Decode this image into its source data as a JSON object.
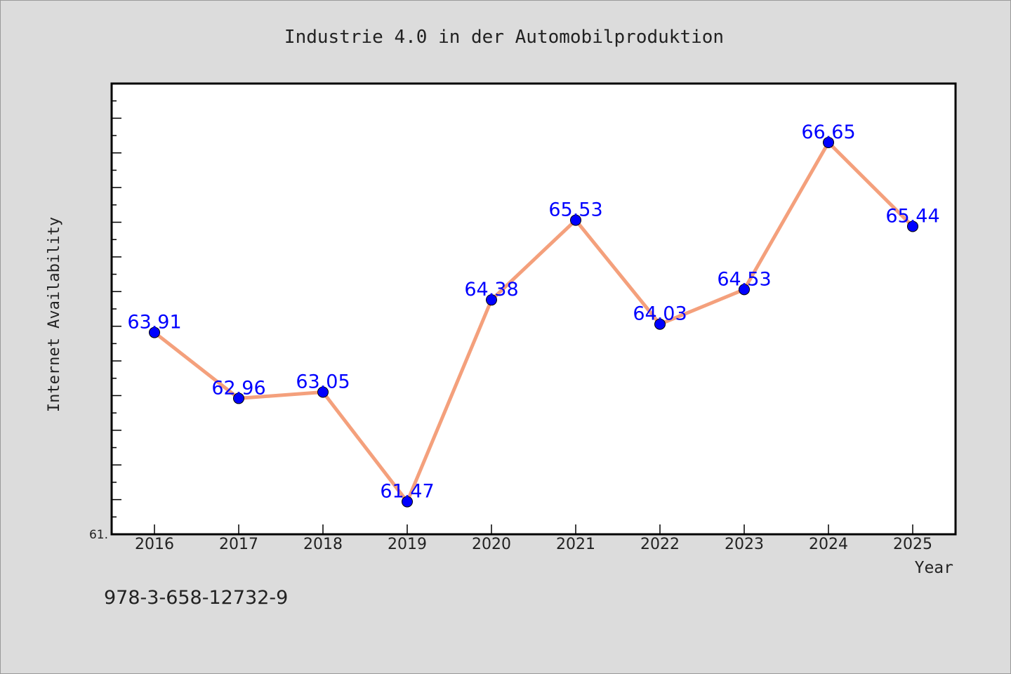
{
  "chart_data": {
    "type": "line",
    "title": "Industrie 4.0 in der Automobilproduktion",
    "xlabel": "Year",
    "ylabel": "Internet Availability",
    "categories": [
      "2016",
      "2017",
      "2018",
      "2019",
      "2020",
      "2021",
      "2022",
      "2023",
      "2024",
      "2025"
    ],
    "series": [
      {
        "values": [
          63.91,
          62.96,
          63.05,
          61.47,
          64.38,
          65.53,
          64.03,
          64.53,
          66.65,
          65.44
        ],
        "data_labels": [
          "63.91",
          "62.96",
          "63.05",
          "61.47",
          "64.38",
          "65.53",
          "64.03",
          "64.53",
          "66.65",
          "65.44"
        ]
      }
    ],
    "ylim": [
      61.0,
      67.5
    ],
    "y_tick_label": "61.",
    "grid": false,
    "legend": "none",
    "colors": {
      "line": "#f4a07c",
      "marker": "#0000ff",
      "label": "#0000ff",
      "plot_bg": "#ffffff",
      "page_bg": "#dcdcdc"
    }
  },
  "footer": {
    "isbn": "978-3-658-12732-9"
  }
}
